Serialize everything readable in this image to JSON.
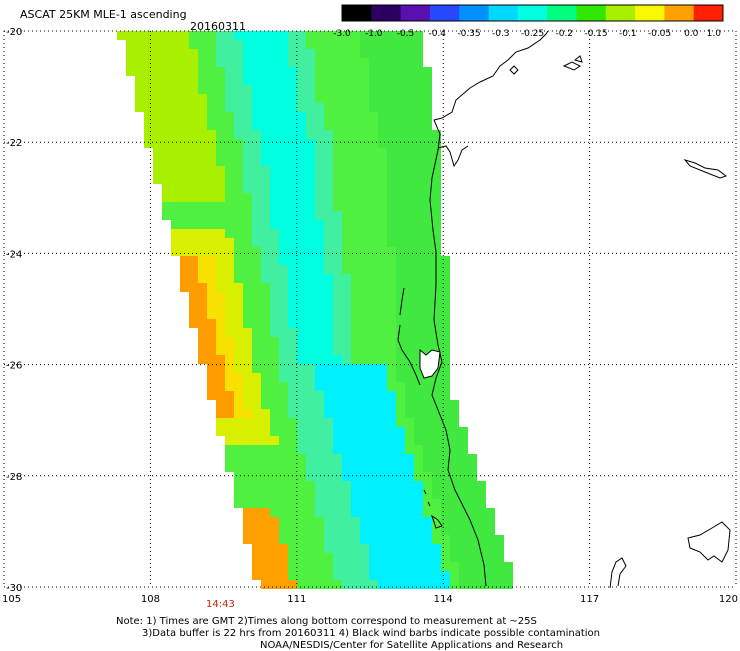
{
  "header": {
    "title": "ASCAT 25KM MLE-1 ascending",
    "date": "20160311"
  },
  "colorbar": {
    "labels": [
      "-3.0",
      "-1.0",
      "-0.5",
      "-0.4",
      "-0.35",
      "-0.3",
      "-0.25",
      "-0.2",
      "-0.15",
      "-0.1",
      "-0.05",
      "0.0",
      "1.0"
    ],
    "colors": [
      "#000000",
      "#2b0060",
      "#5a10b0",
      "#2848ff",
      "#0090ff",
      "#00d8ff",
      "#00ffe0",
      "#00ff80",
      "#30e800",
      "#a8f000",
      "#f8f800",
      "#ffa000",
      "#ff2000"
    ]
  },
  "axes": {
    "lon_labels": [
      "105",
      "108",
      "111",
      "114",
      "117",
      "120"
    ],
    "lat_labels": [
      "-20",
      "-22",
      "-24",
      "-26",
      "-28",
      "-30"
    ]
  },
  "time_label": "14:43",
  "notes": {
    "line1": "Note: 1) Times are GMT 2)Times along bottom correspond to measurement at ~25S",
    "line2": "3)Data buffer is 22 hrs from 20160311 4) Black wind barbs indicate possible contamination",
    "line3": "NOAA/NESDIS/Center for Satellite Applications and Research"
  },
  "colors": {
    "land_outline": "#000000",
    "grid": "#000000",
    "background": "#ffffff"
  }
}
